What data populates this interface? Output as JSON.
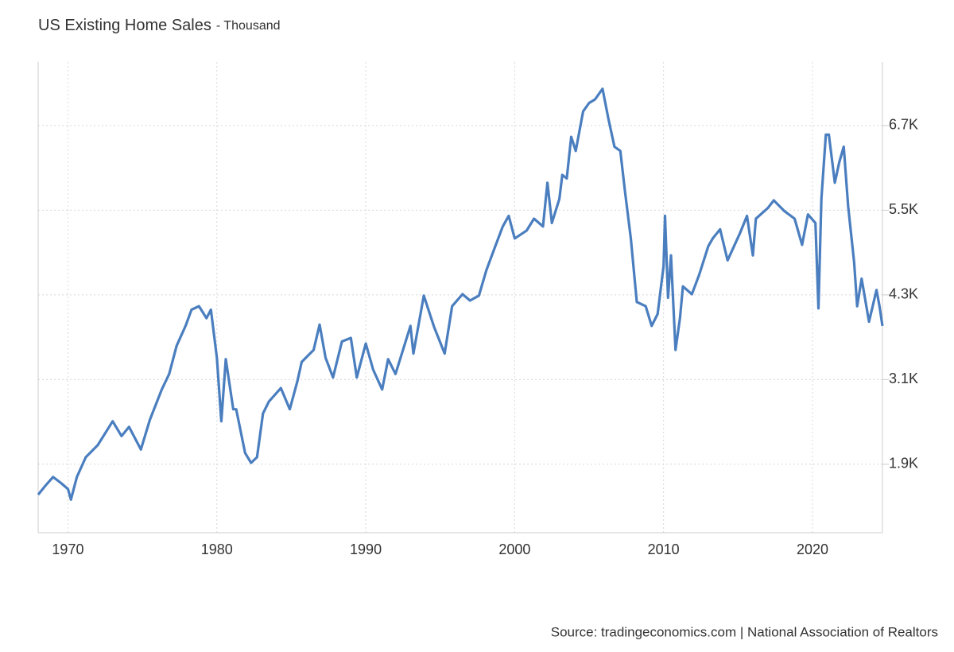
{
  "chart_data": {
    "type": "line",
    "title": "US Existing Home Sales",
    "subtitle": "- Thousand",
    "source": "Source: tradingeconomics.com | National Association of Realtors",
    "xlim": [
      1968,
      2024.7
    ],
    "xticks": [
      1970,
      1980,
      1990,
      2000,
      2010,
      2020
    ],
    "ylim": [
      930,
      7600
    ],
    "yticks": [
      {
        "value": 1900,
        "label": "1.9K"
      },
      {
        "value": 3100,
        "label": "3.1K"
      },
      {
        "value": 4300,
        "label": "4.3K"
      },
      {
        "value": 5500,
        "label": "5.5K"
      },
      {
        "value": 6700,
        "label": "6.7K"
      }
    ],
    "grid": true,
    "series": [
      {
        "color": "#4a7ebf",
        "x": [
          1968.0,
          1968.5,
          1969.0,
          1969.5,
          1970.0,
          1970.2,
          1970.6,
          1971.2,
          1972.0,
          1973.0,
          1973.6,
          1974.1,
          1974.9,
          1975.5,
          1976.3,
          1976.8,
          1977.3,
          1977.9,
          1978.3,
          1978.8,
          1979.3,
          1979.6,
          1980.0,
          1980.3,
          1980.6,
          1981.1,
          1981.3,
          1981.9,
          1982.3,
          1982.7,
          1983.1,
          1983.5,
          1984.3,
          1984.9,
          1985.4,
          1985.7,
          1986.5,
          1986.9,
          1987.3,
          1987.8,
          1988.4,
          1989.0,
          1989.4,
          1990.0,
          1990.5,
          1991.1,
          1991.5,
          1992.0,
          1993.0,
          1993.2,
          1993.9,
          1994.6,
          1995.3,
          1995.8,
          1996.5,
          1997.0,
          1997.6,
          1998.1,
          1998.7,
          1999.2,
          1999.6,
          2000.0,
          2000.8,
          2001.3,
          2001.9,
          2002.2,
          2002.5,
          2003.0,
          2003.2,
          2003.5,
          2003.8,
          2004.1,
          2004.6,
          2005.0,
          2005.4,
          2005.9,
          2006.3,
          2006.7,
          2007.1,
          2007.4,
          2007.8,
          2008.2,
          2008.8,
          2009.2,
          2009.6,
          2010.0,
          2010.1,
          2010.3,
          2010.5,
          2010.8,
          2011.1,
          2011.3,
          2011.9,
          2012.4,
          2013.0,
          2013.3,
          2013.8,
          2014.3,
          2015.1,
          2015.6,
          2016.0,
          2016.2,
          2017.0,
          2017.4,
          2018.1,
          2018.8,
          2019.3,
          2019.7,
          2020.2,
          2020.4,
          2020.6,
          2020.9,
          2021.1,
          2021.5,
          2021.8,
          2022.1,
          2022.4,
          2022.8,
          2023.0,
          2023.3,
          2023.8,
          2024.3,
          2024.5,
          2024.7
        ],
        "values": [
          1470,
          1600,
          1720,
          1640,
          1550,
          1400,
          1720,
          2000,
          2170,
          2510,
          2300,
          2430,
          2110,
          2530,
          2960,
          3180,
          3580,
          3860,
          4090,
          4140,
          3970,
          4090,
          3410,
          2510,
          3390,
          2680,
          2680,
          2060,
          1920,
          2000,
          2620,
          2790,
          2980,
          2680,
          3070,
          3350,
          3520,
          3880,
          3410,
          3130,
          3640,
          3690,
          3130,
          3610,
          3240,
          2960,
          3390,
          3180,
          3860,
          3470,
          4290,
          3840,
          3470,
          4140,
          4310,
          4220,
          4290,
          4650,
          4990,
          5270,
          5420,
          5100,
          5210,
          5380,
          5270,
          5890,
          5320,
          5660,
          6000,
          5950,
          6540,
          6340,
          6900,
          7020,
          7070,
          7220,
          6790,
          6400,
          6340,
          5780,
          5100,
          4200,
          4140,
          3860,
          4030,
          4710,
          5420,
          4260,
          4860,
          3520,
          3970,
          4420,
          4310,
          4590,
          4990,
          5100,
          5230,
          4790,
          5160,
          5420,
          4860,
          5380,
          5530,
          5640,
          5490,
          5380,
          5010,
          5440,
          5320,
          4110,
          5660,
          6570,
          6570,
          5890,
          6180,
          6400,
          5550,
          4760,
          4140,
          4530,
          3920,
          4370,
          4140,
          3860
        ]
      }
    ]
  }
}
